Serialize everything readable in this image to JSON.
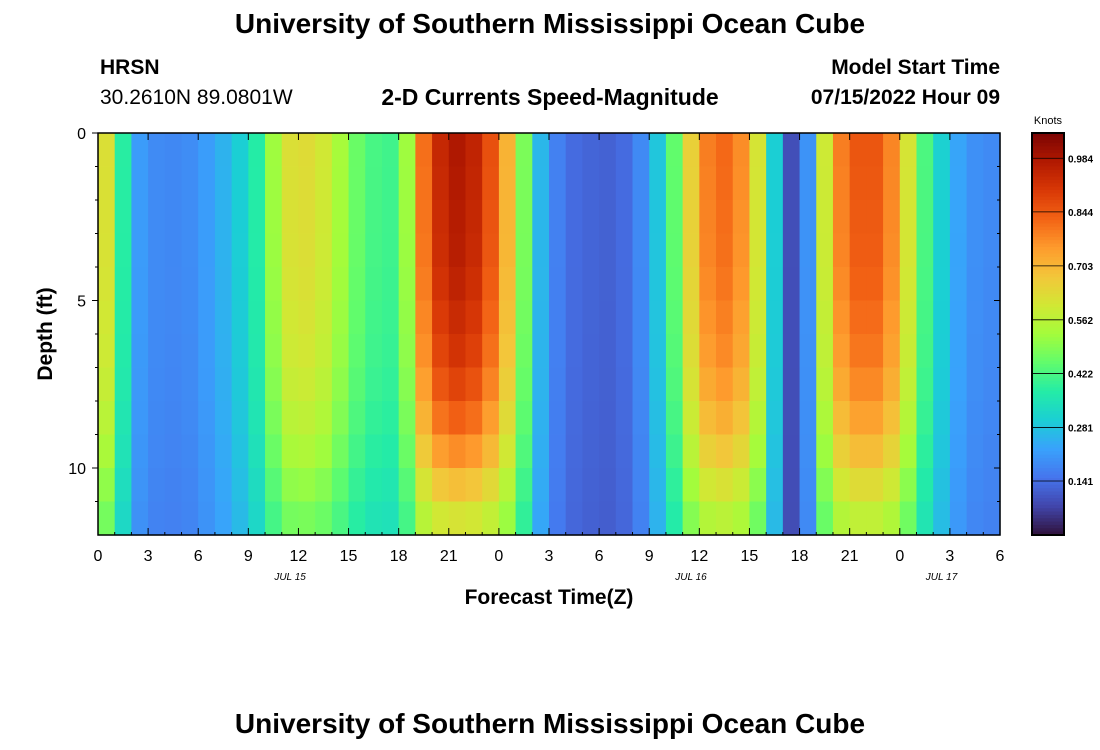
{
  "page": {
    "title": "University of Southern Mississippi Ocean Cube",
    "footer_title": "University of Southern Mississippi Ocean Cube"
  },
  "header": {
    "station": "HRSN",
    "coords": "30.2610N  89.0801W",
    "chart_title": "2-D Currents Speed-Magnitude",
    "start_label": "Model Start Time",
    "start_value": "07/15/2022 Hour 09"
  },
  "chart_data": {
    "type": "heatmap",
    "title": "2-D Currents Speed-Magnitude",
    "xlabel": "Forecast Time(Z)",
    "ylabel": "Depth (ft)",
    "x_start_hour": 0,
    "x_end_hour": 54,
    "x_ticks": [
      "0",
      "3",
      "6",
      "9",
      "12",
      "15",
      "18",
      "21",
      "0",
      "3",
      "6",
      "9",
      "12",
      "15",
      "18",
      "21",
      "0",
      "3",
      "6"
    ],
    "date_labels": [
      {
        "text": "JUL 15",
        "at_hour": 11.5
      },
      {
        "text": "JUL 16",
        "at_hour": 35.5
      },
      {
        "text": "JUL 17",
        "at_hour": 50.5
      }
    ],
    "y_range": [
      0,
      12
    ],
    "y_ticks": [
      "0",
      "5",
      "10"
    ],
    "units": "Knots",
    "colorbar_range": [
      0,
      1.05
    ],
    "colorbar_ticks": [
      "0.141",
      "0.281",
      "0.422",
      "0.562",
      "0.703",
      "0.844",
      "0.984"
    ],
    "colorbar_tick_values": [
      0.141,
      0.281,
      0.422,
      0.562,
      0.703,
      0.844,
      0.984
    ],
    "colormap": [
      "#30123b",
      "#4145ab",
      "#4675ed",
      "#39a2fc",
      "#1bcfd4",
      "#24eca6",
      "#61fc6c",
      "#a4fc3b",
      "#d1e834",
      "#f3c63a",
      "#fe9b2d",
      "#f36315",
      "#d93806",
      "#b11901",
      "#7a0403"
    ],
    "depth_rows": 12,
    "time_columns": 54,
    "surface_speed_keyframes": [
      [
        0,
        0.72
      ],
      [
        0.5,
        0.62
      ],
      [
        1,
        0.48
      ],
      [
        1.5,
        0.38
      ],
      [
        2,
        0.24
      ],
      [
        3,
        0.19
      ],
      [
        5,
        0.18
      ],
      [
        6,
        0.2
      ],
      [
        8,
        0.27
      ],
      [
        9,
        0.33
      ],
      [
        10,
        0.42
      ],
      [
        10.5,
        0.52
      ],
      [
        11,
        0.6
      ],
      [
        12,
        0.64
      ],
      [
        13,
        0.62
      ],
      [
        14,
        0.58
      ],
      [
        15,
        0.48
      ],
      [
        16,
        0.44
      ],
      [
        17,
        0.4
      ],
      [
        18,
        0.42
      ],
      [
        18.5,
        0.52
      ],
      [
        19,
        0.72
      ],
      [
        20,
        0.9
      ],
      [
        21,
        0.98
      ],
      [
        22,
        0.98
      ],
      [
        23,
        0.92
      ],
      [
        24,
        0.8
      ],
      [
        25,
        0.62
      ],
      [
        25.5,
        0.48
      ],
      [
        26,
        0.32
      ],
      [
        27,
        0.2
      ],
      [
        28,
        0.14
      ],
      [
        30,
        0.12
      ],
      [
        31,
        0.12
      ],
      [
        32,
        0.15
      ],
      [
        33,
        0.22
      ],
      [
        34,
        0.35
      ],
      [
        35,
        0.55
      ],
      [
        36,
        0.76
      ],
      [
        37,
        0.82
      ],
      [
        38,
        0.82
      ],
      [
        39,
        0.72
      ],
      [
        40,
        0.5
      ],
      [
        40.5,
        0.3
      ],
      [
        41,
        0.1
      ],
      [
        42,
        0.08
      ],
      [
        42.5,
        0.2
      ],
      [
        43,
        0.45
      ],
      [
        44,
        0.74
      ],
      [
        45,
        0.84
      ],
      [
        46,
        0.86
      ],
      [
        47,
        0.84
      ],
      [
        48,
        0.72
      ],
      [
        49,
        0.5
      ],
      [
        50,
        0.35
      ],
      [
        51,
        0.26
      ],
      [
        52,
        0.2
      ],
      [
        54,
        0.18
      ]
    ],
    "depth_factor_keyframes": [
      [
        0,
        1.0
      ],
      [
        4,
        0.98
      ],
      [
        7,
        0.92
      ],
      [
        9,
        0.82
      ],
      [
        10,
        0.74
      ],
      [
        11,
        0.65
      ],
      [
        12,
        0.58
      ]
    ]
  }
}
